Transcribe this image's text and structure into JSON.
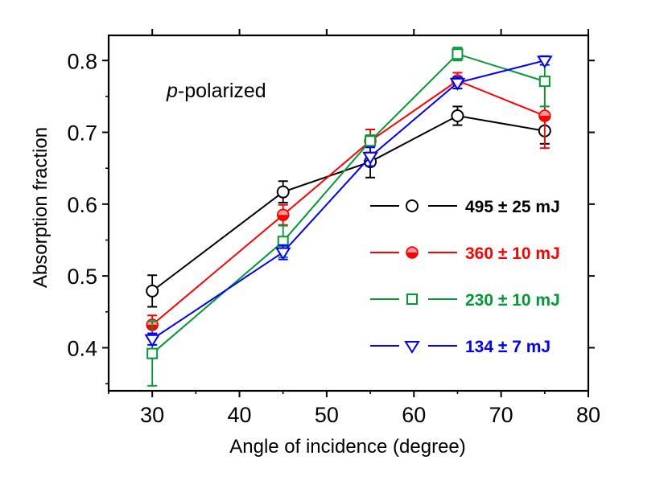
{
  "chart_data": {
    "type": "line",
    "title": "",
    "xlabel": "Angle of incidence (degree)",
    "ylabel": "Absorption fraction",
    "xlim": [
      25,
      80
    ],
    "ylim": [
      0.34,
      0.835
    ],
    "xticks": [
      30,
      40,
      50,
      60,
      70,
      80
    ],
    "yticks": [
      0.4,
      0.5,
      0.6,
      0.7,
      0.8
    ],
    "xtick_labels": [
      "30",
      "40",
      "50",
      "60",
      "70",
      "80"
    ],
    "ytick_labels": [
      "0.4",
      "0.5",
      "0.6",
      "0.7",
      "0.8"
    ],
    "annotation_italic": "p",
    "annotation_rest": "-polarized",
    "legend_position": "center-right",
    "x": [
      30,
      45,
      55,
      65,
      75
    ],
    "series": [
      {
        "name": "495 ± 25 mJ",
        "color": "#000000",
        "marker": "open-circle",
        "values": [
          0.479,
          0.617,
          0.659,
          0.723,
          0.702
        ],
        "errors": [
          0.022,
          0.015,
          0.022,
          0.013,
          0.018
        ]
      },
      {
        "name": "360 ± 10 mJ",
        "color": "#ff0000",
        "marker": "half-filled-circle",
        "values": [
          0.432,
          0.585,
          0.688,
          0.772,
          0.723
        ],
        "errors": [
          0.013,
          0.014,
          0.016,
          0.011,
          0.045
        ]
      },
      {
        "name": "230 ± 10 mJ",
        "color": "#009933",
        "marker": "open-square",
        "values": [
          0.392,
          0.548,
          0.688,
          0.809,
          0.771
        ],
        "errors": [
          0.045,
          0.022,
          0.008,
          0.009,
          0.035
        ]
      },
      {
        "name": "134 ± 7 mJ",
        "color": "#0000ff",
        "marker": "open-triangle-down",
        "values": [
          0.412,
          0.533,
          0.666,
          0.769,
          0.8
        ],
        "errors": [
          0.008,
          0.01,
          0.013,
          0.008,
          0.006
        ]
      }
    ]
  }
}
